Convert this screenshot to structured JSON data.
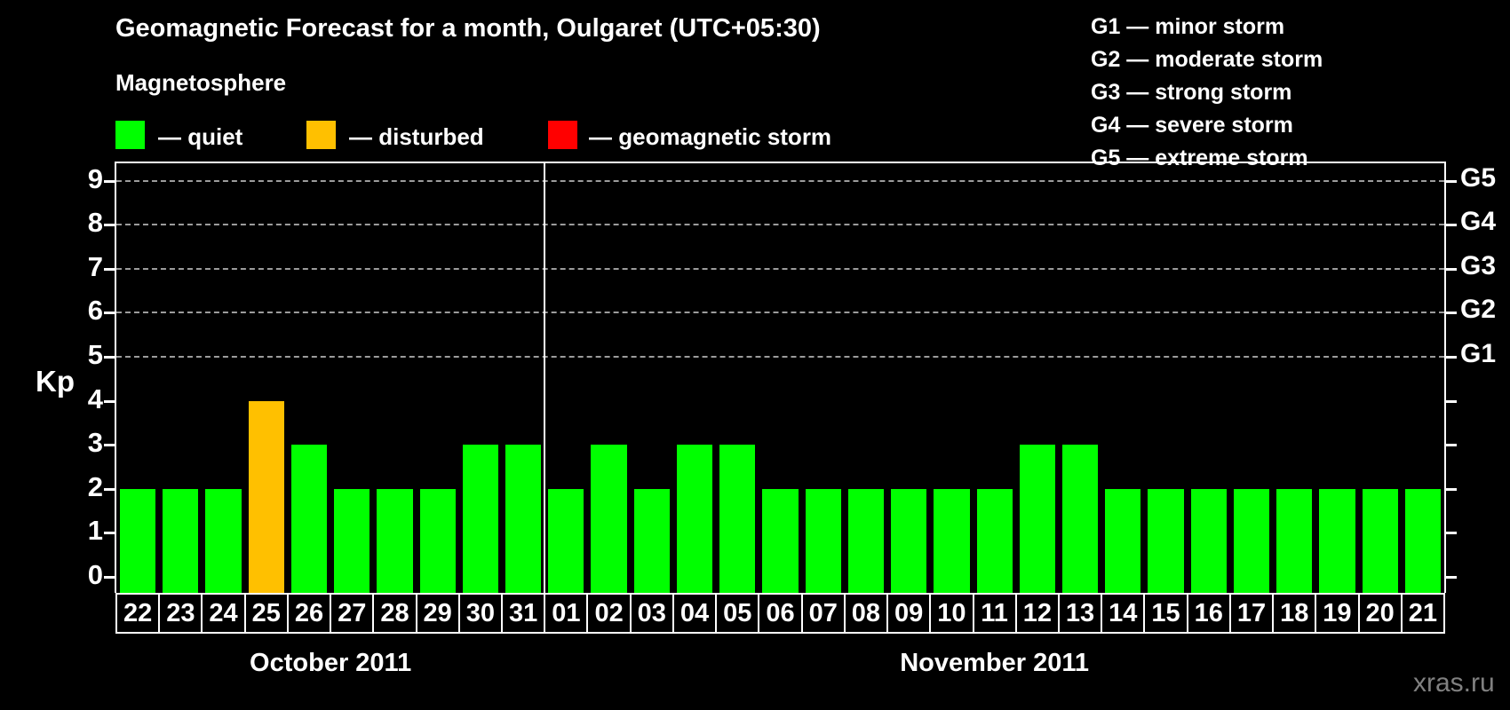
{
  "header": {
    "title": "Geomagnetic Forecast for a month, Oulgaret (UTC+05:30)",
    "subtitle": "Magnetosphere"
  },
  "legend": {
    "items": [
      {
        "key": "quiet",
        "label": "— quiet",
        "color": "#00ff00"
      },
      {
        "key": "disturbed",
        "label": "— disturbed",
        "color": "#ffc000"
      },
      {
        "key": "storm",
        "label": "— geomagnetic storm",
        "color": "#ff0000"
      }
    ]
  },
  "g_legend": {
    "items": [
      "G1 — minor storm",
      "G2 — moderate storm",
      "G3 — strong storm",
      "G4 — severe storm",
      "G5 — extreme storm"
    ]
  },
  "chart_data": {
    "type": "bar",
    "title": "Geomagnetic Forecast for a month, Oulgaret (UTC+05:30)",
    "xlabel": "",
    "ylabel": "Kp",
    "ylim": [
      0,
      9
    ],
    "y_ticks": [
      0,
      1,
      2,
      3,
      4,
      5,
      6,
      7,
      8,
      9
    ],
    "gridline_values": [
      5,
      6,
      7,
      8,
      9
    ],
    "grid": "dashed horizontal lines at Kp 5-9 only",
    "legend_position": "top-left",
    "right_axis_labels": [
      {
        "kp": 5,
        "label": "G1"
      },
      {
        "kp": 6,
        "label": "G2"
      },
      {
        "kp": 7,
        "label": "G3"
      },
      {
        "kp": 8,
        "label": "G4"
      },
      {
        "kp": 9,
        "label": "G5"
      }
    ],
    "months": [
      {
        "label": "October 2011",
        "days": [
          "22",
          "23",
          "24",
          "25",
          "26",
          "27",
          "28",
          "29",
          "30",
          "31"
        ],
        "values": [
          2,
          2,
          2,
          4,
          3,
          2,
          2,
          2,
          3,
          3
        ],
        "statuses": [
          "quiet",
          "quiet",
          "quiet",
          "disturbed",
          "quiet",
          "quiet",
          "quiet",
          "quiet",
          "quiet",
          "quiet"
        ]
      },
      {
        "label": "November 2011",
        "days": [
          "01",
          "02",
          "03",
          "04",
          "05",
          "06",
          "07",
          "08",
          "09",
          "10",
          "11",
          "12",
          "13",
          "14",
          "15",
          "16",
          "17",
          "18",
          "19",
          "20",
          "21"
        ],
        "values": [
          2,
          3,
          2,
          3,
          3,
          2,
          2,
          2,
          2,
          2,
          2,
          3,
          3,
          2,
          2,
          2,
          2,
          2,
          2,
          2,
          2
        ],
        "statuses": [
          "quiet",
          "quiet",
          "quiet",
          "quiet",
          "quiet",
          "quiet",
          "quiet",
          "quiet",
          "quiet",
          "quiet",
          "quiet",
          "quiet",
          "quiet",
          "quiet",
          "quiet",
          "quiet",
          "quiet",
          "quiet",
          "quiet",
          "quiet",
          "quiet"
        ]
      }
    ]
  },
  "colors": {
    "background": "#000000",
    "axis": "#ffffff",
    "grid": "#9c9c9c",
    "quiet": "#00ff00",
    "disturbed": "#ffc000",
    "storm": "#ff0000",
    "watermark": "#808080"
  },
  "footer": {
    "watermark": "xras.ru"
  }
}
